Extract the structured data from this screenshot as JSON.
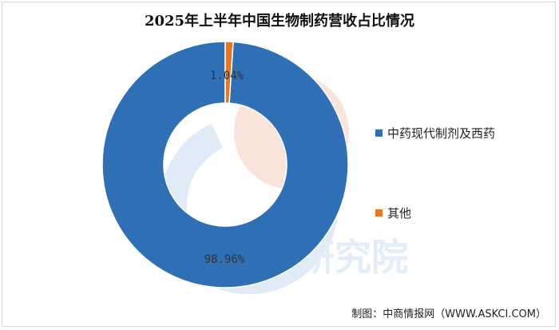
{
  "title": "2025年上半年中国生物制药营收占比情况",
  "chart_data": {
    "type": "pie",
    "variant": "donut",
    "categories": [
      "中药现代制剂及西药",
      "其他"
    ],
    "values": [
      98.96,
      1.04
    ],
    "data_labels": [
      "98.96%",
      "1.04%"
    ],
    "colors": [
      "#2e6fb5",
      "#e8781e"
    ],
    "legend_position": "right"
  },
  "source": "制图：中商情报网（WWW.ASKCI.COM）",
  "watermark": "中商产业研究院"
}
